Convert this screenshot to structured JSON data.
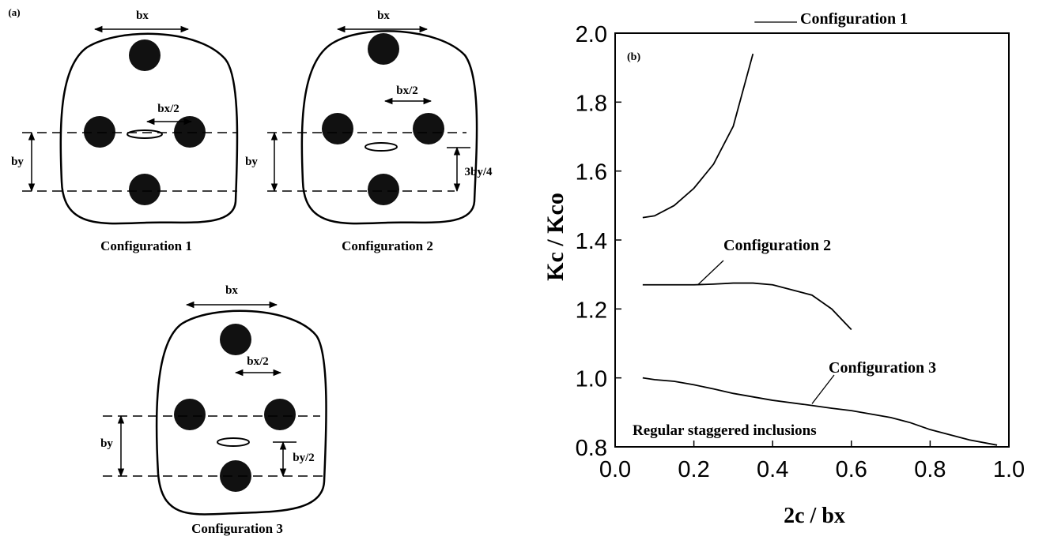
{
  "panel_a": {
    "label": "(a)",
    "diagrams": [
      {
        "caption": "Configuration 1",
        "bx": "bx",
        "half_bx": "bx/2",
        "by": "by"
      },
      {
        "caption": "Configuration 2",
        "bx": "bx",
        "half_bx": "bx/2",
        "by": "by",
        "offset": "3by/4"
      },
      {
        "caption": "Configuration 3",
        "bx": "bx",
        "half_bx": "bx/2",
        "by": "by",
        "offset": "by/2"
      }
    ]
  },
  "chart_data": {
    "type": "line",
    "panel_label": "(b)",
    "x_label": "2c / bx",
    "y_label": "Kc / Kco",
    "note": "Regular staggered inclusions",
    "x": [
      0.07,
      0.1,
      0.15,
      0.2,
      0.25,
      0.3,
      0.35,
      0.4,
      0.5,
      0.55,
      0.6,
      0.7,
      0.75,
      0.8,
      0.9,
      0.97
    ],
    "series": [
      {
        "name": "Configuration 1",
        "color": "#000000",
        "values": [
          1.465,
          1.47,
          1.5,
          1.55,
          1.62,
          1.73,
          1.94,
          null,
          null,
          null,
          null,
          null,
          null,
          null,
          null,
          null
        ]
      },
      {
        "name": "Configuration 2",
        "color": "#000000",
        "values": [
          1.27,
          1.27,
          1.27,
          1.27,
          1.272,
          1.275,
          1.275,
          1.27,
          1.24,
          1.2,
          1.14,
          null,
          null,
          null,
          null,
          null
        ]
      },
      {
        "name": "Configuration 3",
        "color": "#000000",
        "values": [
          1.0,
          0.995,
          0.99,
          0.98,
          0.968,
          0.955,
          0.945,
          0.935,
          0.92,
          0.912,
          0.905,
          0.885,
          0.87,
          0.85,
          0.82,
          0.805
        ]
      }
    ],
    "xlim": [
      0,
      1
    ],
    "ylim": [
      0.8,
      2
    ],
    "xticks": [
      {
        "value": 0,
        "label": "0.0"
      },
      0.2,
      0.4,
      0.6,
      0.8,
      {
        "value": 1,
        "label": "1.0"
      }
    ],
    "yticks": [
      0.8,
      {
        "value": 1,
        "label": "1.0"
      },
      1.2,
      1.4,
      1.6,
      1.8,
      {
        "value": 2,
        "label": "2.0"
      }
    ],
    "grid": false
  }
}
